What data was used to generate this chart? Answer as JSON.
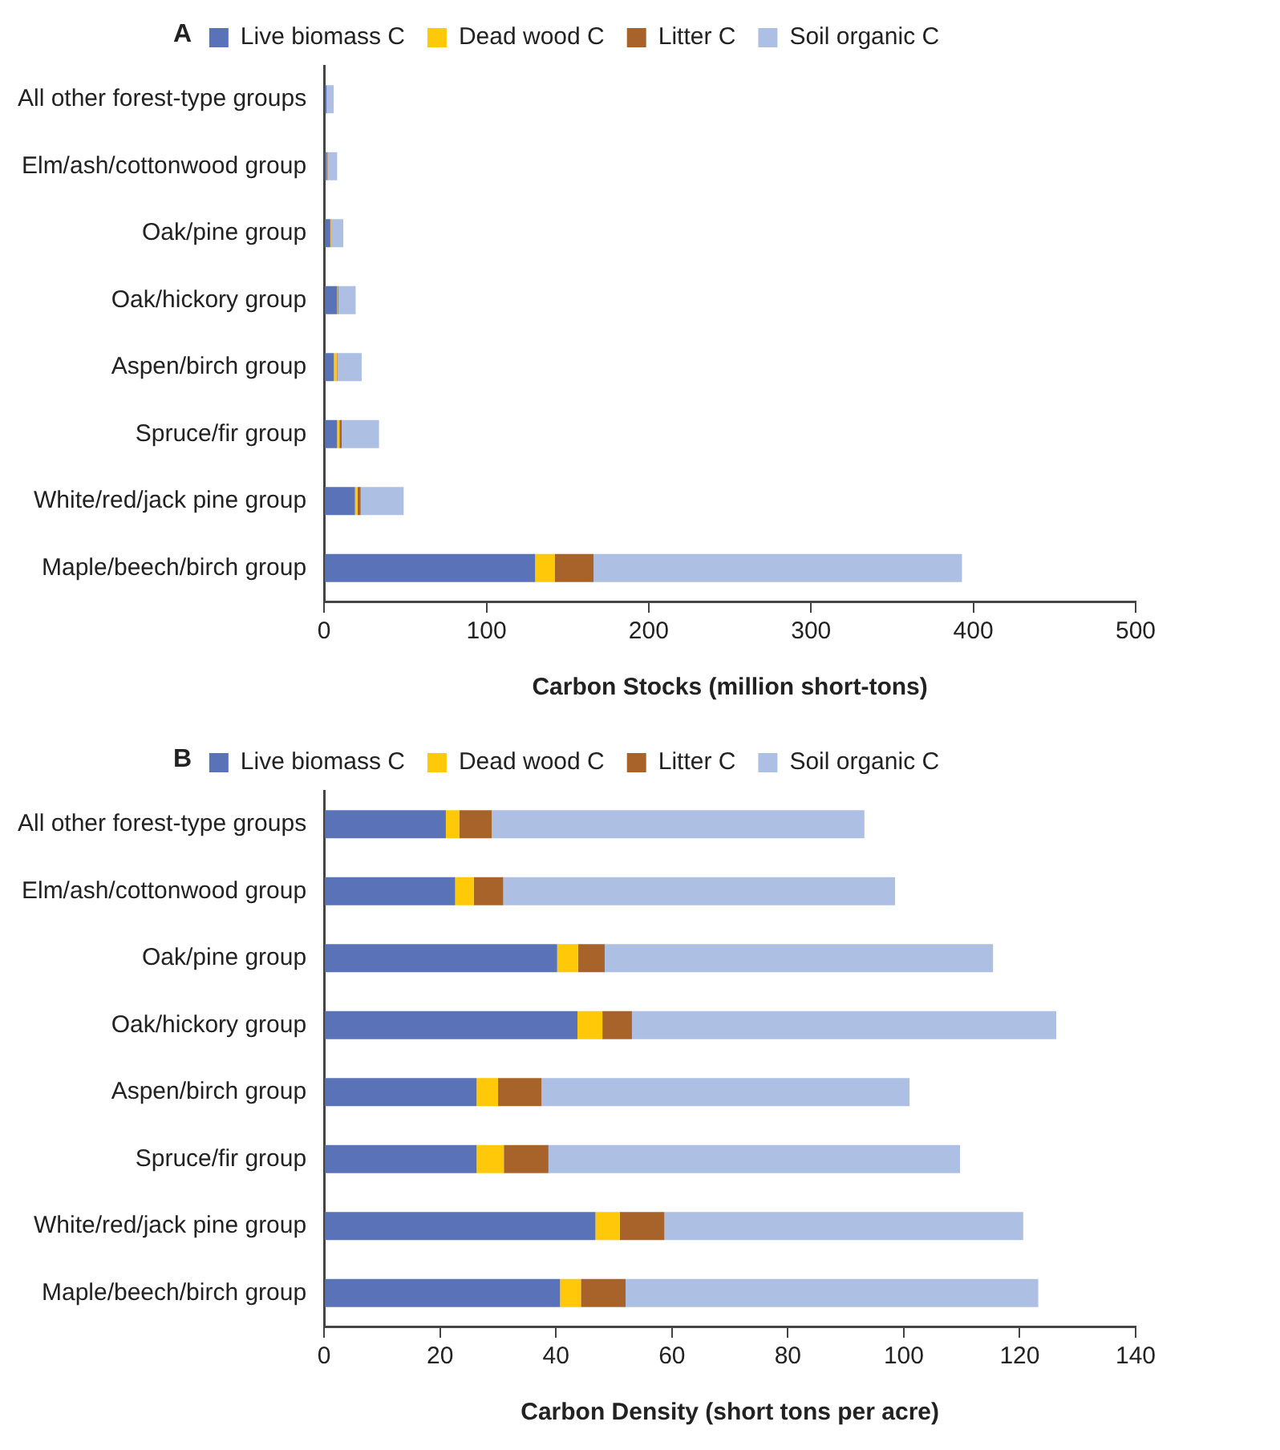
{
  "chart_data": [
    {
      "type": "bar",
      "title": "A",
      "xlabel": "Carbon Stocks (million short-tons)",
      "orientation": "horizontal",
      "stacked": true,
      "legend": "top",
      "xlim": [
        0,
        500
      ],
      "xticks": [
        0,
        100,
        200,
        300,
        400,
        500
      ],
      "categories": [
        "All other forest-type groups",
        "Elm/ash/cottonwood group",
        "Oak/pine group",
        "Oak/hickory group",
        "Aspen/birch group",
        "Spruce/fir group",
        "White/red/jack pine group",
        "Maple/beech/birch group"
      ],
      "series": [
        {
          "name": "Live biomass C",
          "color": "#5a73b8",
          "values": [
            1.4,
            1.7,
            3.8,
            8,
            6,
            8,
            19,
            130
          ]
        },
        {
          "name": "Dead wood C",
          "color": "#ffc90a",
          "values": [
            0.1,
            0.2,
            0.3,
            0.4,
            1.7,
            1.4,
            1.5,
            12
          ]
        },
        {
          "name": "Litter C",
          "color": "#a8632a",
          "values": [
            0.2,
            0.3,
            0.3,
            0.4,
            0.4,
            1.4,
            2,
            24
          ]
        },
        {
          "name": "Soil organic C",
          "color": "#adc0e3",
          "values": [
            4.2,
            5.8,
            7.4,
            10.6,
            15,
            23,
            26.5,
            227
          ]
        }
      ]
    },
    {
      "type": "bar",
      "title": "B",
      "xlabel": "Carbon Density (short tons per acre)",
      "orientation": "horizontal",
      "stacked": true,
      "legend": "top",
      "xlim": [
        0,
        140
      ],
      "xticks": [
        0,
        20,
        40,
        60,
        80,
        100,
        120,
        140
      ],
      "categories": [
        "All other forest-type groups",
        "Elm/ash/cottonwood group",
        "Oak/pine group",
        "Oak/hickory group",
        "Aspen/birch group",
        "Spruce/fir group",
        "White/red/jack pine group",
        "Maple/beech/birch group"
      ],
      "series": [
        {
          "name": "Live biomass C",
          "color": "#5a73b8",
          "values": [
            21,
            22.6,
            40.2,
            43.7,
            26.3,
            26.3,
            46.8,
            40.7
          ]
        },
        {
          "name": "Dead wood C",
          "color": "#ffc90a",
          "values": [
            2.3,
            3.2,
            3.6,
            4.3,
            3.7,
            4.7,
            4.2,
            3.6
          ]
        },
        {
          "name": "Litter C",
          "color": "#a8632a",
          "values": [
            5.6,
            5.1,
            4.6,
            5.1,
            7.5,
            7.7,
            7.7,
            7.7
          ]
        },
        {
          "name": "Soil organic C",
          "color": "#adc0e3",
          "values": [
            64.3,
            67.6,
            67,
            73.2,
            63.5,
            71,
            61.9,
            71.2
          ]
        }
      ]
    }
  ]
}
